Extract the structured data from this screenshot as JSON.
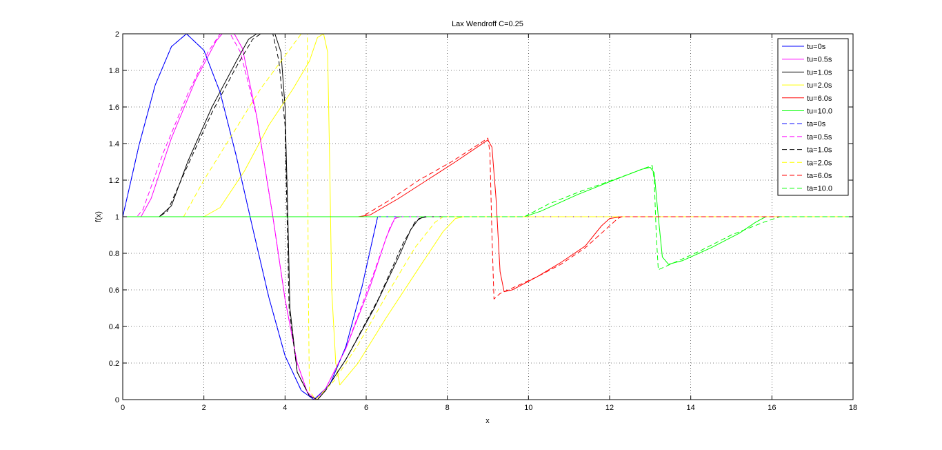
{
  "chart_data": {
    "type": "line",
    "title": "Lax Wendroff C=0.25",
    "xlabel": "x",
    "ylabel": "f(x)",
    "xlim": [
      0,
      18
    ],
    "ylim": [
      0,
      2
    ],
    "xticks": [
      0,
      2,
      4,
      6,
      8,
      10,
      12,
      14,
      16,
      18
    ],
    "yticks": [
      0,
      0.2,
      0.4,
      0.6,
      0.8,
      1,
      1.2,
      1.4,
      1.6,
      1.8,
      2
    ],
    "xtick_labels": [
      "0",
      "2",
      "4",
      "6",
      "8",
      "10",
      "12",
      "14",
      "16",
      "18"
    ],
    "ytick_labels": [
      "0",
      "0.2",
      "0.4",
      "0.6",
      "0.8",
      "1",
      "1.2",
      "1.4",
      "1.6",
      "1.8",
      "2"
    ],
    "grid": true,
    "legend_position": "top-right",
    "series": [
      {
        "name": "tu=0s",
        "color": "#0000ff",
        "style": "solid",
        "points": [
          [
            0,
            1
          ],
          [
            0.4,
            1.39
          ],
          [
            0.8,
            1.72
          ],
          [
            1.2,
            1.93
          ],
          [
            1.571,
            2
          ],
          [
            2,
            1.91
          ],
          [
            2.4,
            1.68
          ],
          [
            2.8,
            1.33
          ],
          [
            3.2,
            0.94
          ],
          [
            3.6,
            0.56
          ],
          [
            4,
            0.24
          ],
          [
            4.4,
            0.05
          ],
          [
            4.712,
            0
          ],
          [
            5.1,
            0.08
          ],
          [
            5.5,
            0.29
          ],
          [
            5.9,
            0.62
          ],
          [
            6.283,
            1
          ],
          [
            6.283,
            1
          ],
          [
            18,
            1
          ]
        ]
      },
      {
        "name": "tu=0.5s",
        "color": "#ff00ff",
        "style": "solid",
        "points": [
          [
            0,
            1
          ],
          [
            0.45,
            1.0
          ],
          [
            0.7,
            1.1
          ],
          [
            1.2,
            1.43
          ],
          [
            1.8,
            1.75
          ],
          [
            2.3,
            1.96
          ],
          [
            2.45,
            2
          ],
          [
            2.75,
            2
          ],
          [
            2.95,
            1.92
          ],
          [
            3.3,
            1.55
          ],
          [
            3.7,
            1.0
          ],
          [
            4.0,
            0.55
          ],
          [
            4.3,
            0.2
          ],
          [
            4.55,
            0.04
          ],
          [
            4.75,
            0
          ],
          [
            5.0,
            0.06
          ],
          [
            5.5,
            0.28
          ],
          [
            6.1,
            0.62
          ],
          [
            6.5,
            0.89
          ],
          [
            6.7,
            0.99
          ],
          [
            6.85,
            1
          ],
          [
            18,
            1
          ]
        ]
      },
      {
        "name": "tu=1.0s",
        "color": "#000000",
        "style": "solid",
        "points": [
          [
            0,
            1
          ],
          [
            0.9,
            1.0
          ],
          [
            1.2,
            1.06
          ],
          [
            1.6,
            1.3
          ],
          [
            2.2,
            1.6
          ],
          [
            2.8,
            1.85
          ],
          [
            3.1,
            1.97
          ],
          [
            3.3,
            2
          ],
          [
            3.75,
            2
          ],
          [
            3.9,
            1.9
          ],
          [
            4.0,
            1.6
          ],
          [
            4.07,
            1.0
          ],
          [
            4.12,
            0.5
          ],
          [
            4.3,
            0.15
          ],
          [
            4.6,
            0.02
          ],
          [
            4.8,
            0
          ],
          [
            5.0,
            0.05
          ],
          [
            5.5,
            0.22
          ],
          [
            6.2,
            0.5
          ],
          [
            6.8,
            0.78
          ],
          [
            7.1,
            0.93
          ],
          [
            7.3,
            0.99
          ],
          [
            7.5,
            1
          ],
          [
            18,
            1
          ]
        ]
      },
      {
        "name": "tu=2.0s",
        "color": "#ffff00",
        "style": "solid",
        "points": [
          [
            0,
            1
          ],
          [
            2.0,
            1.0
          ],
          [
            2.4,
            1.05
          ],
          [
            3.0,
            1.25
          ],
          [
            3.6,
            1.5
          ],
          [
            4.2,
            1.7
          ],
          [
            4.6,
            1.85
          ],
          [
            4.8,
            1.98
          ],
          [
            4.95,
            2
          ],
          [
            5.05,
            1.9
          ],
          [
            5.1,
            1.3
          ],
          [
            5.15,
            0.6
          ],
          [
            5.25,
            0.2
          ],
          [
            5.35,
            0.08
          ],
          [
            5.8,
            0.2
          ],
          [
            6.5,
            0.45
          ],
          [
            7.3,
            0.72
          ],
          [
            7.9,
            0.92
          ],
          [
            8.2,
            0.99
          ],
          [
            8.4,
            1
          ],
          [
            18,
            1
          ]
        ]
      },
      {
        "name": "tu=6.0s",
        "color": "#ff0000",
        "style": "solid",
        "points": [
          [
            0,
            1
          ],
          [
            5.8,
            1.0
          ],
          [
            6.1,
            1.01
          ],
          [
            6.8,
            1.1
          ],
          [
            7.5,
            1.2
          ],
          [
            8.2,
            1.3
          ],
          [
            8.8,
            1.39
          ],
          [
            9.0,
            1.42
          ],
          [
            9.1,
            1.38
          ],
          [
            9.2,
            1.1
          ],
          [
            9.3,
            0.7
          ],
          [
            9.4,
            0.59
          ],
          [
            9.6,
            0.6
          ],
          [
            10.2,
            0.67
          ],
          [
            10.8,
            0.75
          ],
          [
            11.4,
            0.84
          ],
          [
            11.8,
            0.95
          ],
          [
            12.0,
            0.99
          ],
          [
            12.3,
            1
          ],
          [
            18,
            1
          ]
        ]
      },
      {
        "name": "tu=10.0",
        "color": "#00ff00",
        "style": "solid",
        "points": [
          [
            0,
            1
          ],
          [
            9.9,
            1.0
          ],
          [
            10.3,
            1.03
          ],
          [
            11.2,
            1.12
          ],
          [
            12.1,
            1.2
          ],
          [
            12.8,
            1.26
          ],
          [
            13.0,
            1.27
          ],
          [
            13.1,
            1.24
          ],
          [
            13.2,
            1.0
          ],
          [
            13.3,
            0.78
          ],
          [
            13.45,
            0.74
          ],
          [
            13.8,
            0.76
          ],
          [
            14.5,
            0.83
          ],
          [
            15.2,
            0.91
          ],
          [
            15.6,
            0.97
          ],
          [
            15.85,
            1
          ],
          [
            18,
            1
          ]
        ]
      },
      {
        "name": "ta=0s",
        "color": "#0000ff",
        "style": "dashed",
        "points": [
          [
            0,
            1
          ],
          [
            0.4,
            1.39
          ],
          [
            0.8,
            1.72
          ],
          [
            1.2,
            1.93
          ],
          [
            1.571,
            2
          ],
          [
            2,
            1.91
          ],
          [
            2.4,
            1.68
          ],
          [
            2.8,
            1.33
          ],
          [
            3.2,
            0.94
          ],
          [
            3.6,
            0.56
          ],
          [
            4,
            0.24
          ],
          [
            4.4,
            0.05
          ],
          [
            4.712,
            0
          ],
          [
            5.1,
            0.08
          ],
          [
            5.5,
            0.29
          ],
          [
            5.9,
            0.62
          ],
          [
            6.283,
            1
          ],
          [
            6.283,
            1
          ],
          [
            18,
            1
          ]
        ]
      },
      {
        "name": "ta=0.5s",
        "color": "#ff00ff",
        "style": "dashed",
        "points": [
          [
            0,
            1
          ],
          [
            0.35,
            1.0
          ],
          [
            0.5,
            1.04
          ],
          [
            1.0,
            1.35
          ],
          [
            1.6,
            1.67
          ],
          [
            2.1,
            1.9
          ],
          [
            2.4,
            2
          ],
          [
            2.65,
            2
          ],
          [
            2.9,
            1.9
          ],
          [
            3.3,
            1.55
          ],
          [
            3.7,
            1.0
          ],
          [
            4.0,
            0.55
          ],
          [
            4.3,
            0.2
          ],
          [
            4.55,
            0.04
          ],
          [
            4.75,
            0
          ],
          [
            5.0,
            0.06
          ],
          [
            5.5,
            0.28
          ],
          [
            6.2,
            0.7
          ],
          [
            6.6,
            0.95
          ],
          [
            6.75,
            1
          ],
          [
            18,
            1
          ]
        ]
      },
      {
        "name": "ta=1.0s",
        "color": "#000000",
        "style": "dashed",
        "points": [
          [
            0,
            1
          ],
          [
            0.9,
            1.0
          ],
          [
            1.1,
            1.03
          ],
          [
            1.6,
            1.28
          ],
          [
            2.2,
            1.57
          ],
          [
            2.8,
            1.82
          ],
          [
            3.2,
            1.97
          ],
          [
            3.4,
            2
          ],
          [
            3.7,
            2
          ],
          [
            3.85,
            1.85
          ],
          [
            4.0,
            1.5
          ],
          [
            4.05,
            1.0
          ],
          [
            4.1,
            0.5
          ],
          [
            4.3,
            0.15
          ],
          [
            4.6,
            0.02
          ],
          [
            4.8,
            0
          ],
          [
            5.0,
            0.05
          ],
          [
            5.5,
            0.22
          ],
          [
            6.3,
            0.55
          ],
          [
            6.9,
            0.85
          ],
          [
            7.2,
            0.97
          ],
          [
            7.4,
            1
          ],
          [
            18,
            1
          ]
        ]
      },
      {
        "name": "ta=2.0s",
        "color": "#ffff00",
        "style": "dashed",
        "points": [
          [
            0,
            1
          ],
          [
            1.5,
            1.0
          ],
          [
            2.0,
            1.2
          ],
          [
            2.7,
            1.45
          ],
          [
            3.4,
            1.7
          ],
          [
            4.0,
            1.88
          ],
          [
            4.4,
            2
          ],
          [
            4.55,
            2
          ],
          [
            4.57,
            0.7
          ],
          [
            4.6,
            0.05
          ],
          [
            4.75,
            0
          ],
          [
            5.2,
            0.1
          ],
          [
            5.8,
            0.3
          ],
          [
            6.5,
            0.57
          ],
          [
            7.2,
            0.83
          ],
          [
            7.7,
            0.97
          ],
          [
            7.9,
            1
          ],
          [
            18,
            1
          ]
        ]
      },
      {
        "name": "ta=6.0s",
        "color": "#ff0000",
        "style": "dashed",
        "points": [
          [
            0,
            1
          ],
          [
            5.9,
            1.0
          ],
          [
            6.5,
            1.08
          ],
          [
            7.3,
            1.2
          ],
          [
            8.1,
            1.3
          ],
          [
            8.8,
            1.4
          ],
          [
            9.0,
            1.43
          ],
          [
            9.05,
            1.35
          ],
          [
            9.1,
            0.9
          ],
          [
            9.15,
            0.55
          ],
          [
            9.3,
            0.58
          ],
          [
            9.5,
            0.6
          ],
          [
            10.2,
            0.67
          ],
          [
            10.8,
            0.74
          ],
          [
            11.4,
            0.83
          ],
          [
            11.9,
            0.93
          ],
          [
            12.2,
            0.99
          ],
          [
            12.3,
            1
          ],
          [
            18,
            1
          ]
        ]
      },
      {
        "name": "ta=10.0",
        "color": "#00ff00",
        "style": "dashed",
        "points": [
          [
            0,
            1
          ],
          [
            9.9,
            1.0
          ],
          [
            10.5,
            1.07
          ],
          [
            11.3,
            1.14
          ],
          [
            12.2,
            1.21
          ],
          [
            12.8,
            1.26
          ],
          [
            13.05,
            1.28
          ],
          [
            13.1,
            1.2
          ],
          [
            13.15,
            0.9
          ],
          [
            13.2,
            0.71
          ],
          [
            13.5,
            0.74
          ],
          [
            14.2,
            0.81
          ],
          [
            15.0,
            0.9
          ],
          [
            15.8,
            0.97
          ],
          [
            16.2,
            1
          ],
          [
            18,
            1
          ]
        ]
      }
    ]
  }
}
